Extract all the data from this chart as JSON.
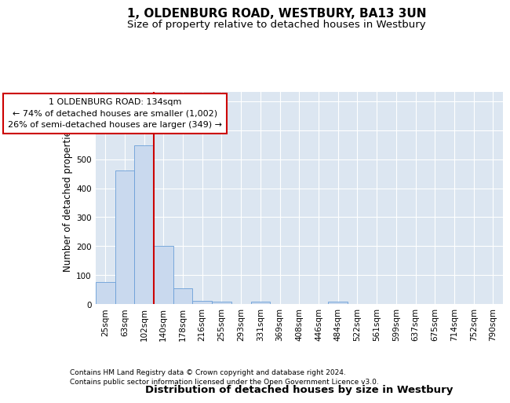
{
  "title": "1, OLDENBURG ROAD, WESTBURY, BA13 3UN",
  "subtitle": "Size of property relative to detached houses in Westbury",
  "xlabel": "Distribution of detached houses by size in Westbury",
  "ylabel": "Number of detached properties",
  "categories": [
    "25sqm",
    "63sqm",
    "102sqm",
    "140sqm",
    "178sqm",
    "216sqm",
    "255sqm",
    "293sqm",
    "331sqm",
    "369sqm",
    "408sqm",
    "446sqm",
    "484sqm",
    "522sqm",
    "561sqm",
    "599sqm",
    "637sqm",
    "675sqm",
    "714sqm",
    "752sqm",
    "790sqm"
  ],
  "values": [
    78,
    460,
    547,
    202,
    55,
    13,
    8,
    0,
    8,
    0,
    0,
    0,
    8,
    0,
    0,
    0,
    0,
    0,
    0,
    0,
    0
  ],
  "bar_color": "#c9d9ee",
  "bar_edge_color": "#6a9fd8",
  "redline_index": 3,
  "redline_color": "#cc0000",
  "ylim": [
    0,
    730
  ],
  "yticks": [
    0,
    100,
    200,
    300,
    400,
    500,
    600,
    700
  ],
  "annotation_text": "1 OLDENBURG ROAD: 134sqm\n← 74% of detached houses are smaller (1,002)\n26% of semi-detached houses are larger (349) →",
  "annotation_box_color": "#ffffff",
  "annotation_box_edge": "#cc0000",
  "footer_line1": "Contains HM Land Registry data © Crown copyright and database right 2024.",
  "footer_line2": "Contains public sector information licensed under the Open Government Licence v3.0.",
  "plot_bg_color": "#dce6f1",
  "fig_bg_color": "#ffffff",
  "grid_color": "#ffffff",
  "title_fontsize": 11,
  "subtitle_fontsize": 9.5,
  "tick_fontsize": 7.5,
  "ylabel_fontsize": 8.5,
  "xlabel_fontsize": 9.5
}
